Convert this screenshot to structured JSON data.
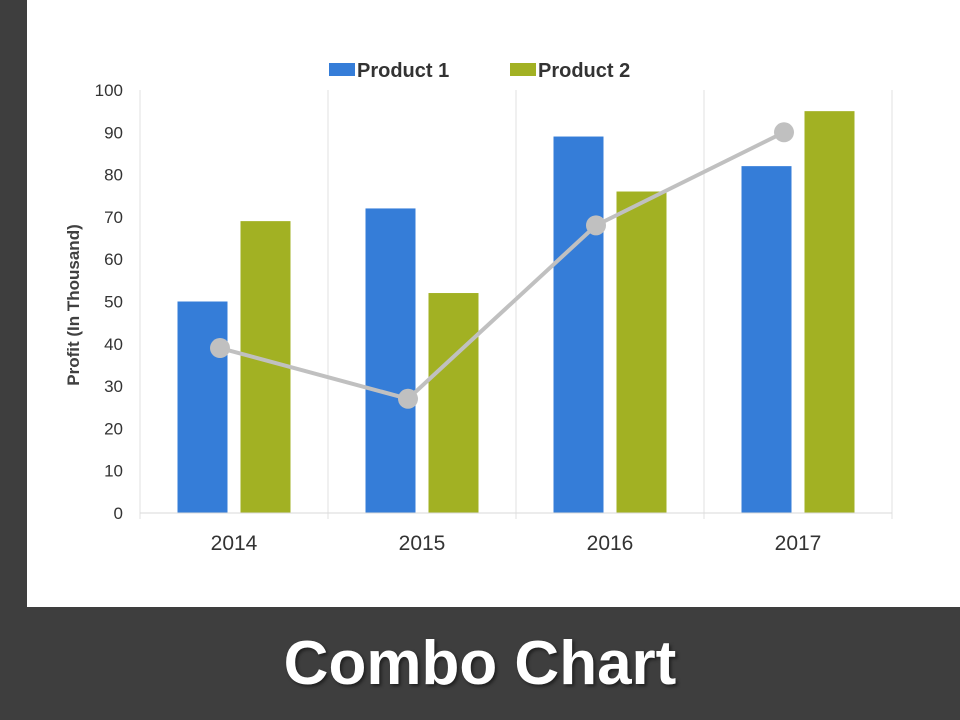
{
  "title": "Combo Chart",
  "chart_data": {
    "type": "bar",
    "combo": true,
    "categories": [
      "2014",
      "2015",
      "2016",
      "2017"
    ],
    "series": [
      {
        "name": "Product 1",
        "type": "bar",
        "color": "#357dd8",
        "values": [
          50,
          72,
          89,
          82
        ]
      },
      {
        "name": "Product 2",
        "type": "bar",
        "color": "#a2b123",
        "values": [
          69,
          52,
          76,
          95
        ]
      },
      {
        "type": "line",
        "color": "#c0c0c0",
        "values": [
          39,
          27,
          68,
          90
        ]
      }
    ],
    "ylabel": "Profit (In Thousand)",
    "xlabel": "",
    "ylim": [
      0,
      100
    ],
    "yticks": [
      0,
      10,
      20,
      30,
      40,
      50,
      60,
      70,
      80,
      90,
      100
    ],
    "gridlines": "vertical category separators",
    "legend_position": "top-center"
  }
}
